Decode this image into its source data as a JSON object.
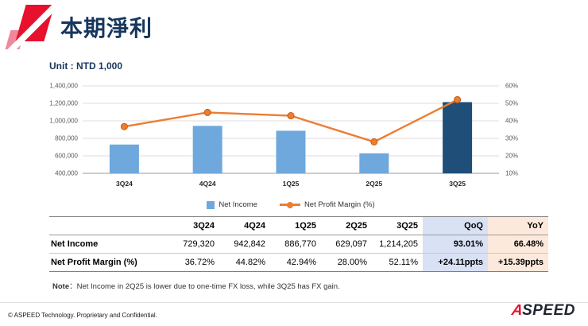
{
  "slide": {
    "title": "本期淨利",
    "unit_label": "Unit : NTD 1,000",
    "note": {
      "label": "Note",
      "text": "：Net Income in 2Q25 is lower due to one-time FX loss, while 3Q25 has FX gain."
    },
    "footer_text": "© ASPEED Technology. Proprietary and Confidential.",
    "logo": {
      "mark": "A",
      "text": "SPEED"
    }
  },
  "chart_data": {
    "type": "bar",
    "subtype": "bar+line combo, dual axis",
    "categories": [
      "3Q24",
      "4Q24",
      "1Q25",
      "2Q25",
      "3Q25"
    ],
    "series": [
      {
        "name": "Net Income",
        "type": "bar",
        "axis": "left",
        "values": [
          729320,
          942842,
          886770,
          629097,
          1214205
        ],
        "bar_colors": [
          "#6FA8DC",
          "#6FA8DC",
          "#6FA8DC",
          "#6FA8DC",
          "#1F4E79"
        ]
      },
      {
        "name": "Net Profit Margin (%)",
        "type": "line",
        "axis": "right",
        "values": [
          36.72,
          44.82,
          42.94,
          28.0,
          52.11
        ],
        "color": "#ED7D31"
      }
    ],
    "left_axis": {
      "min": 400000,
      "max": 1400000,
      "step": 200000,
      "tick_labels": [
        "400,000",
        "600,000",
        "800,000",
        "1,000,000",
        "1,200,000",
        "1,400,000"
      ]
    },
    "right_axis": {
      "min": 10,
      "max": 60,
      "step": 10,
      "tick_labels": [
        "10%",
        "20%",
        "30%",
        "40%",
        "50%",
        "60%"
      ]
    },
    "grid": true,
    "legend_position": "bottom"
  },
  "table": {
    "columns": [
      "",
      "3Q24",
      "4Q24",
      "1Q25",
      "2Q25",
      "3Q25",
      "QoQ",
      "YoY"
    ],
    "rows": [
      {
        "label": "Net Income",
        "values": [
          "729,320",
          "942,842",
          "886,770",
          "629,097",
          "1,214,205",
          "93.01%",
          "66.48%"
        ]
      },
      {
        "label": "Net Profit Margin (%)",
        "values": [
          "36.72%",
          "44.82%",
          "42.94%",
          "28.00%",
          "52.11%",
          "+24.11ppts",
          "+15.39ppts"
        ]
      }
    ],
    "highlight": {
      "qoq_bg": "#D9E1F5",
      "yoy_bg": "#FCE9DB"
    }
  },
  "colors": {
    "title_navy": "#17375E",
    "bar_blue": "#6FA8DC",
    "bar_dark_blue": "#1F4E79",
    "line_orange": "#ED7D31",
    "brand_red": "#E8112D"
  }
}
